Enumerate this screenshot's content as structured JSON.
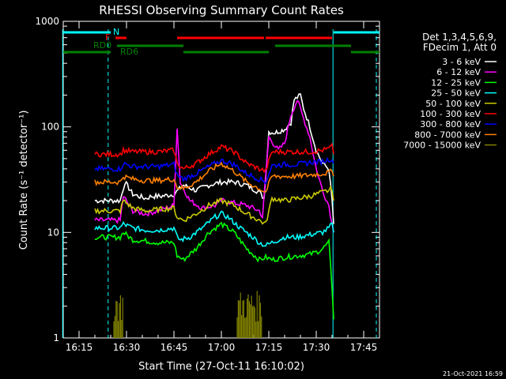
{
  "chart_data": {
    "type": "line",
    "title": "RHESSI Observing Summary Count Rates",
    "xlabel": "Start Time (27-Oct-11 16:10:02)",
    "ylabel": "Count Rate (s⁻¹ detector⁻¹)",
    "y_scale": "log",
    "ylim": [
      1,
      1000
    ],
    "xlim_minutes": [
      0,
      100
    ],
    "x_tick_labels": [
      "16:15",
      "16:30",
      "16:45",
      "17:00",
      "17:15",
      "17:30",
      "17:45"
    ],
    "x_tick_minutes": [
      5,
      20,
      35,
      50,
      65,
      80,
      95
    ],
    "y_tick_labels": [
      "1",
      "10",
      "100",
      "1000"
    ],
    "y_tick_values": [
      1,
      10,
      100,
      1000
    ],
    "legend_placement": "right",
    "legend_header": [
      "Det 1,3,4,5,6,9,",
      "FDecim 1, Att 0"
    ],
    "footer_date": "21-Oct-2021 16:59",
    "series": [
      {
        "name": "3 - 6 keV",
        "color": "#ffffff",
        "x": [
          10,
          18,
          19.5,
          22,
          26,
          28,
          31,
          35,
          38,
          42,
          46,
          50,
          54,
          58,
          62,
          63.5,
          65,
          67,
          70,
          72,
          73,
          75,
          76,
          78,
          80,
          82,
          84,
          85,
          85.5
        ],
        "y": [
          20,
          20,
          30,
          23,
          21,
          22,
          22,
          23,
          28,
          25,
          28,
          30,
          30,
          28,
          24,
          21,
          90,
          88,
          95,
          110,
          180,
          200,
          150,
          100,
          60,
          45,
          40,
          20,
          12
        ]
      },
      {
        "name": "6 - 12 keV",
        "color": "#ff00ff",
        "x": [
          10,
          18,
          19,
          22,
          26,
          30,
          35,
          36,
          37,
          40,
          44,
          48,
          50,
          54,
          58,
          62,
          63,
          65,
          68,
          70,
          72,
          74,
          76,
          78,
          80,
          82,
          84,
          85,
          85.5
        ],
        "y": [
          13,
          13,
          22,
          16,
          15,
          16,
          18,
          100,
          30,
          20,
          17,
          18,
          20,
          19,
          18,
          16,
          14,
          80,
          60,
          70,
          130,
          180,
          120,
          80,
          40,
          25,
          18,
          12,
          10
        ]
      },
      {
        "name": "12 - 25 keV",
        "color": "#00ff00",
        "x": [
          10,
          18,
          19,
          22,
          26,
          30,
          35,
          36,
          38,
          42,
          46,
          50,
          54,
          58,
          62,
          64,
          66,
          70,
          74,
          78,
          80,
          82,
          84,
          85,
          85.5
        ],
        "y": [
          9,
          9,
          10,
          8.5,
          8.3,
          8.0,
          8.0,
          6.0,
          5.5,
          7,
          10,
          12,
          10,
          7,
          5.5,
          5.8,
          5.5,
          5.8,
          6.0,
          6.2,
          6.5,
          7,
          8,
          3,
          1.5
        ]
      },
      {
        "name": "25 - 50 keV",
        "color": "#00ffff",
        "x": [
          10,
          18,
          19,
          22,
          26,
          30,
          35,
          36,
          37,
          40,
          44,
          48,
          50,
          52,
          56,
          60,
          62,
          64,
          66,
          70,
          74,
          78,
          82,
          84,
          85,
          85.5
        ],
        "y": [
          11,
          11,
          12,
          11,
          10.5,
          10.5,
          11,
          9,
          8.5,
          9,
          11,
          14,
          15,
          14,
          11,
          9,
          8,
          7.5,
          8,
          9,
          9,
          9.5,
          10,
          11,
          12,
          10
        ]
      },
      {
        "name": "50 - 100 keV",
        "color": "#cccc00",
        "x": [
          10,
          18,
          19,
          22,
          26,
          30,
          35,
          36,
          38,
          42,
          46,
          50,
          54,
          58,
          62,
          64,
          66,
          70,
          74,
          78,
          82,
          84,
          85,
          85.5
        ],
        "y": [
          16,
          16,
          20,
          17,
          16,
          16.5,
          17,
          14,
          13,
          15,
          18,
          20,
          18,
          15,
          13,
          12,
          21,
          20,
          21,
          22,
          24,
          25,
          26,
          20
        ]
      },
      {
        "name": "100 - 300 keV",
        "color": "#ff0000",
        "x": [
          10,
          18,
          19,
          22,
          26,
          30,
          35,
          36,
          38,
          42,
          46,
          50,
          54,
          58,
          62,
          64,
          66,
          70,
          74,
          78,
          82,
          84,
          85,
          85.5
        ],
        "y": [
          55,
          55,
          60,
          58,
          58,
          58,
          60,
          45,
          40,
          45,
          55,
          65,
          58,
          45,
          40,
          38,
          58,
          58,
          58,
          58,
          60,
          62,
          65,
          55
        ]
      },
      {
        "name": "300 - 800 keV",
        "color": "#0000ff",
        "x": [
          10,
          18,
          19,
          22,
          26,
          30,
          35,
          36,
          38,
          42,
          46,
          50,
          54,
          58,
          62,
          64,
          66,
          70,
          74,
          78,
          82,
          84,
          85,
          85.5
        ],
        "y": [
          40,
          40,
          45,
          42,
          42,
          42,
          44,
          35,
          32,
          36,
          42,
          48,
          44,
          36,
          32,
          30,
          43,
          44,
          44,
          46,
          47,
          49,
          50,
          45
        ]
      },
      {
        "name": "800 - 7000 keV",
        "color": "#ff8000",
        "x": [
          10,
          18,
          19,
          22,
          26,
          30,
          35,
          36,
          38,
          42,
          46,
          50,
          54,
          58,
          62,
          64,
          66,
          70,
          74,
          78,
          82,
          84,
          85,
          85.5
        ],
        "y": [
          30,
          30,
          34,
          32,
          31,
          31,
          32,
          27,
          26,
          30,
          38,
          45,
          38,
          30,
          26,
          24,
          34,
          34,
          34,
          35,
          36,
          37,
          38,
          34
        ]
      },
      {
        "name": "7000 - 15000 keV",
        "color": "#808000",
        "x": [
          10,
          11,
          14,
          15,
          17,
          18,
          19
        ],
        "y": [
          1,
          1.8,
          1.5,
          2.0,
          1.7,
          1.6,
          1
        ]
      }
    ],
    "flags": {
      "N": {
        "label": "N",
        "color": "#00ffff"
      },
      "F": {
        "label": "F",
        "color": "#ff0000"
      },
      "RD0": {
        "label": "RD0",
        "color": "#008000"
      },
      "RD6": {
        "label": "RD6",
        "color": "#008000"
      }
    }
  }
}
